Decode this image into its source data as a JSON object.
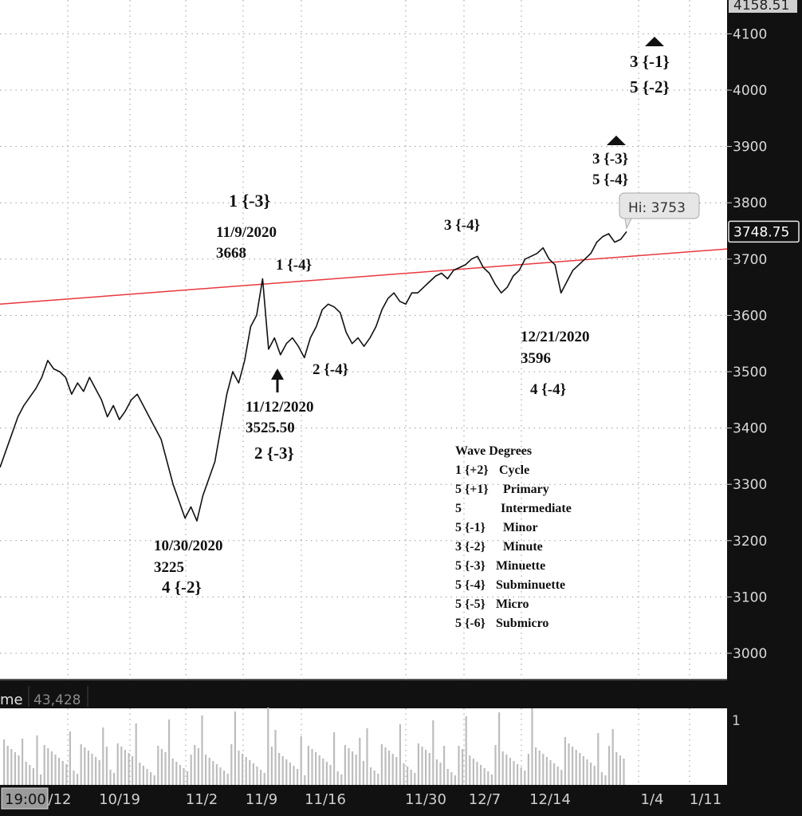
{
  "chart_data": {
    "type": "line",
    "title": "",
    "xlabel": "",
    "ylabel": "",
    "ylim": [
      2950,
      4160
    ],
    "grid": true,
    "y_ticks": [
      "3000",
      "3100",
      "3200",
      "3300",
      "3400",
      "3500",
      "3600",
      "3700",
      "3800",
      "3900",
      "4000",
      "4100"
    ],
    "y_top_partial": "4158.51",
    "x_ticks": [
      "/12",
      "10/19",
      "11/2",
      "11/9",
      "11/16",
      "11/30",
      "12/7",
      "12/14",
      "1/4",
      "1/11"
    ],
    "x_badge": "19:00",
    "last_price": "3748.75",
    "hi_label": "Hi: 3753",
    "series": [
      {
        "values": [
          3330,
          3360,
          3390,
          3420,
          3440,
          3455,
          3470,
          3490,
          3520,
          3505,
          3500,
          3490,
          3460,
          3480,
          3465,
          3490,
          3470,
          3450,
          3420,
          3440,
          3415,
          3430,
          3450,
          3460,
          3440,
          3420,
          3400,
          3380,
          3340,
          3300,
          3270,
          3240,
          3260,
          3235,
          3280,
          3310,
          3340,
          3400,
          3460,
          3500,
          3480,
          3520,
          3580,
          3600,
          3665,
          3540,
          3560,
          3530,
          3550,
          3560,
          3545,
          3525,
          3560,
          3580,
          3610,
          3620,
          3615,
          3605,
          3570,
          3550,
          3560,
          3545,
          3560,
          3580,
          3610,
          3630,
          3640,
          3625,
          3620,
          3640,
          3640,
          3650,
          3660,
          3670,
          3675,
          3665,
          3680,
          3685,
          3690,
          3700,
          3705,
          3685,
          3675,
          3655,
          3640,
          3650,
          3670,
          3680,
          3700,
          3705,
          3710,
          3720,
          3700,
          3690,
          3640,
          3660,
          3680,
          3690,
          3700,
          3710,
          3730,
          3740,
          3745,
          3730,
          3735,
          3748.75
        ]
      }
    ],
    "volume": {
      "label": "me",
      "value": "43,428",
      "scale_label": "1"
    },
    "trendline": {
      "from": 3620,
      "to": 3718
    },
    "annotations": [
      {
        "text": "1 {-3}"
      },
      {
        "text": "11/9/2020"
      },
      {
        "text": "3668"
      },
      {
        "text": "1 {-4}"
      },
      {
        "text": "3 {-4}"
      },
      {
        "text": "3 {-3}"
      },
      {
        "text": "5 {-4}"
      },
      {
        "text": "3 {-1}"
      },
      {
        "text": "5 {-2}"
      },
      {
        "text": "12/21/2020"
      },
      {
        "text": "3596"
      },
      {
        "text": "4 {-4}"
      },
      {
        "text": "2 {-4}"
      },
      {
        "text": "11/12/2020"
      },
      {
        "text": "3525.50"
      },
      {
        "text": "2 {-3}"
      },
      {
        "text": "10/30/2020"
      },
      {
        "text": "3225"
      },
      {
        "text": "4 {-2}"
      }
    ],
    "legend": {
      "title": "Wave Degrees",
      "rows": [
        {
          "count": "1 {+2}",
          "name": "Cycle"
        },
        {
          "count": "5 {+1}",
          "name": "Primary"
        },
        {
          "count": "5",
          "name": "Intermediate"
        },
        {
          "count": "5 {-1}",
          "name": "Minor"
        },
        {
          "count": "3 {-2}",
          "name": "Minute"
        },
        {
          "count": "5 {-3}",
          "name": "Minuette"
        },
        {
          "count": "5 {-4}",
          "name": "Subminuette"
        },
        {
          "count": "5 {-5}",
          "name": "Micro"
        },
        {
          "count": "5 {-6}",
          "name": "Submicro"
        }
      ]
    }
  }
}
